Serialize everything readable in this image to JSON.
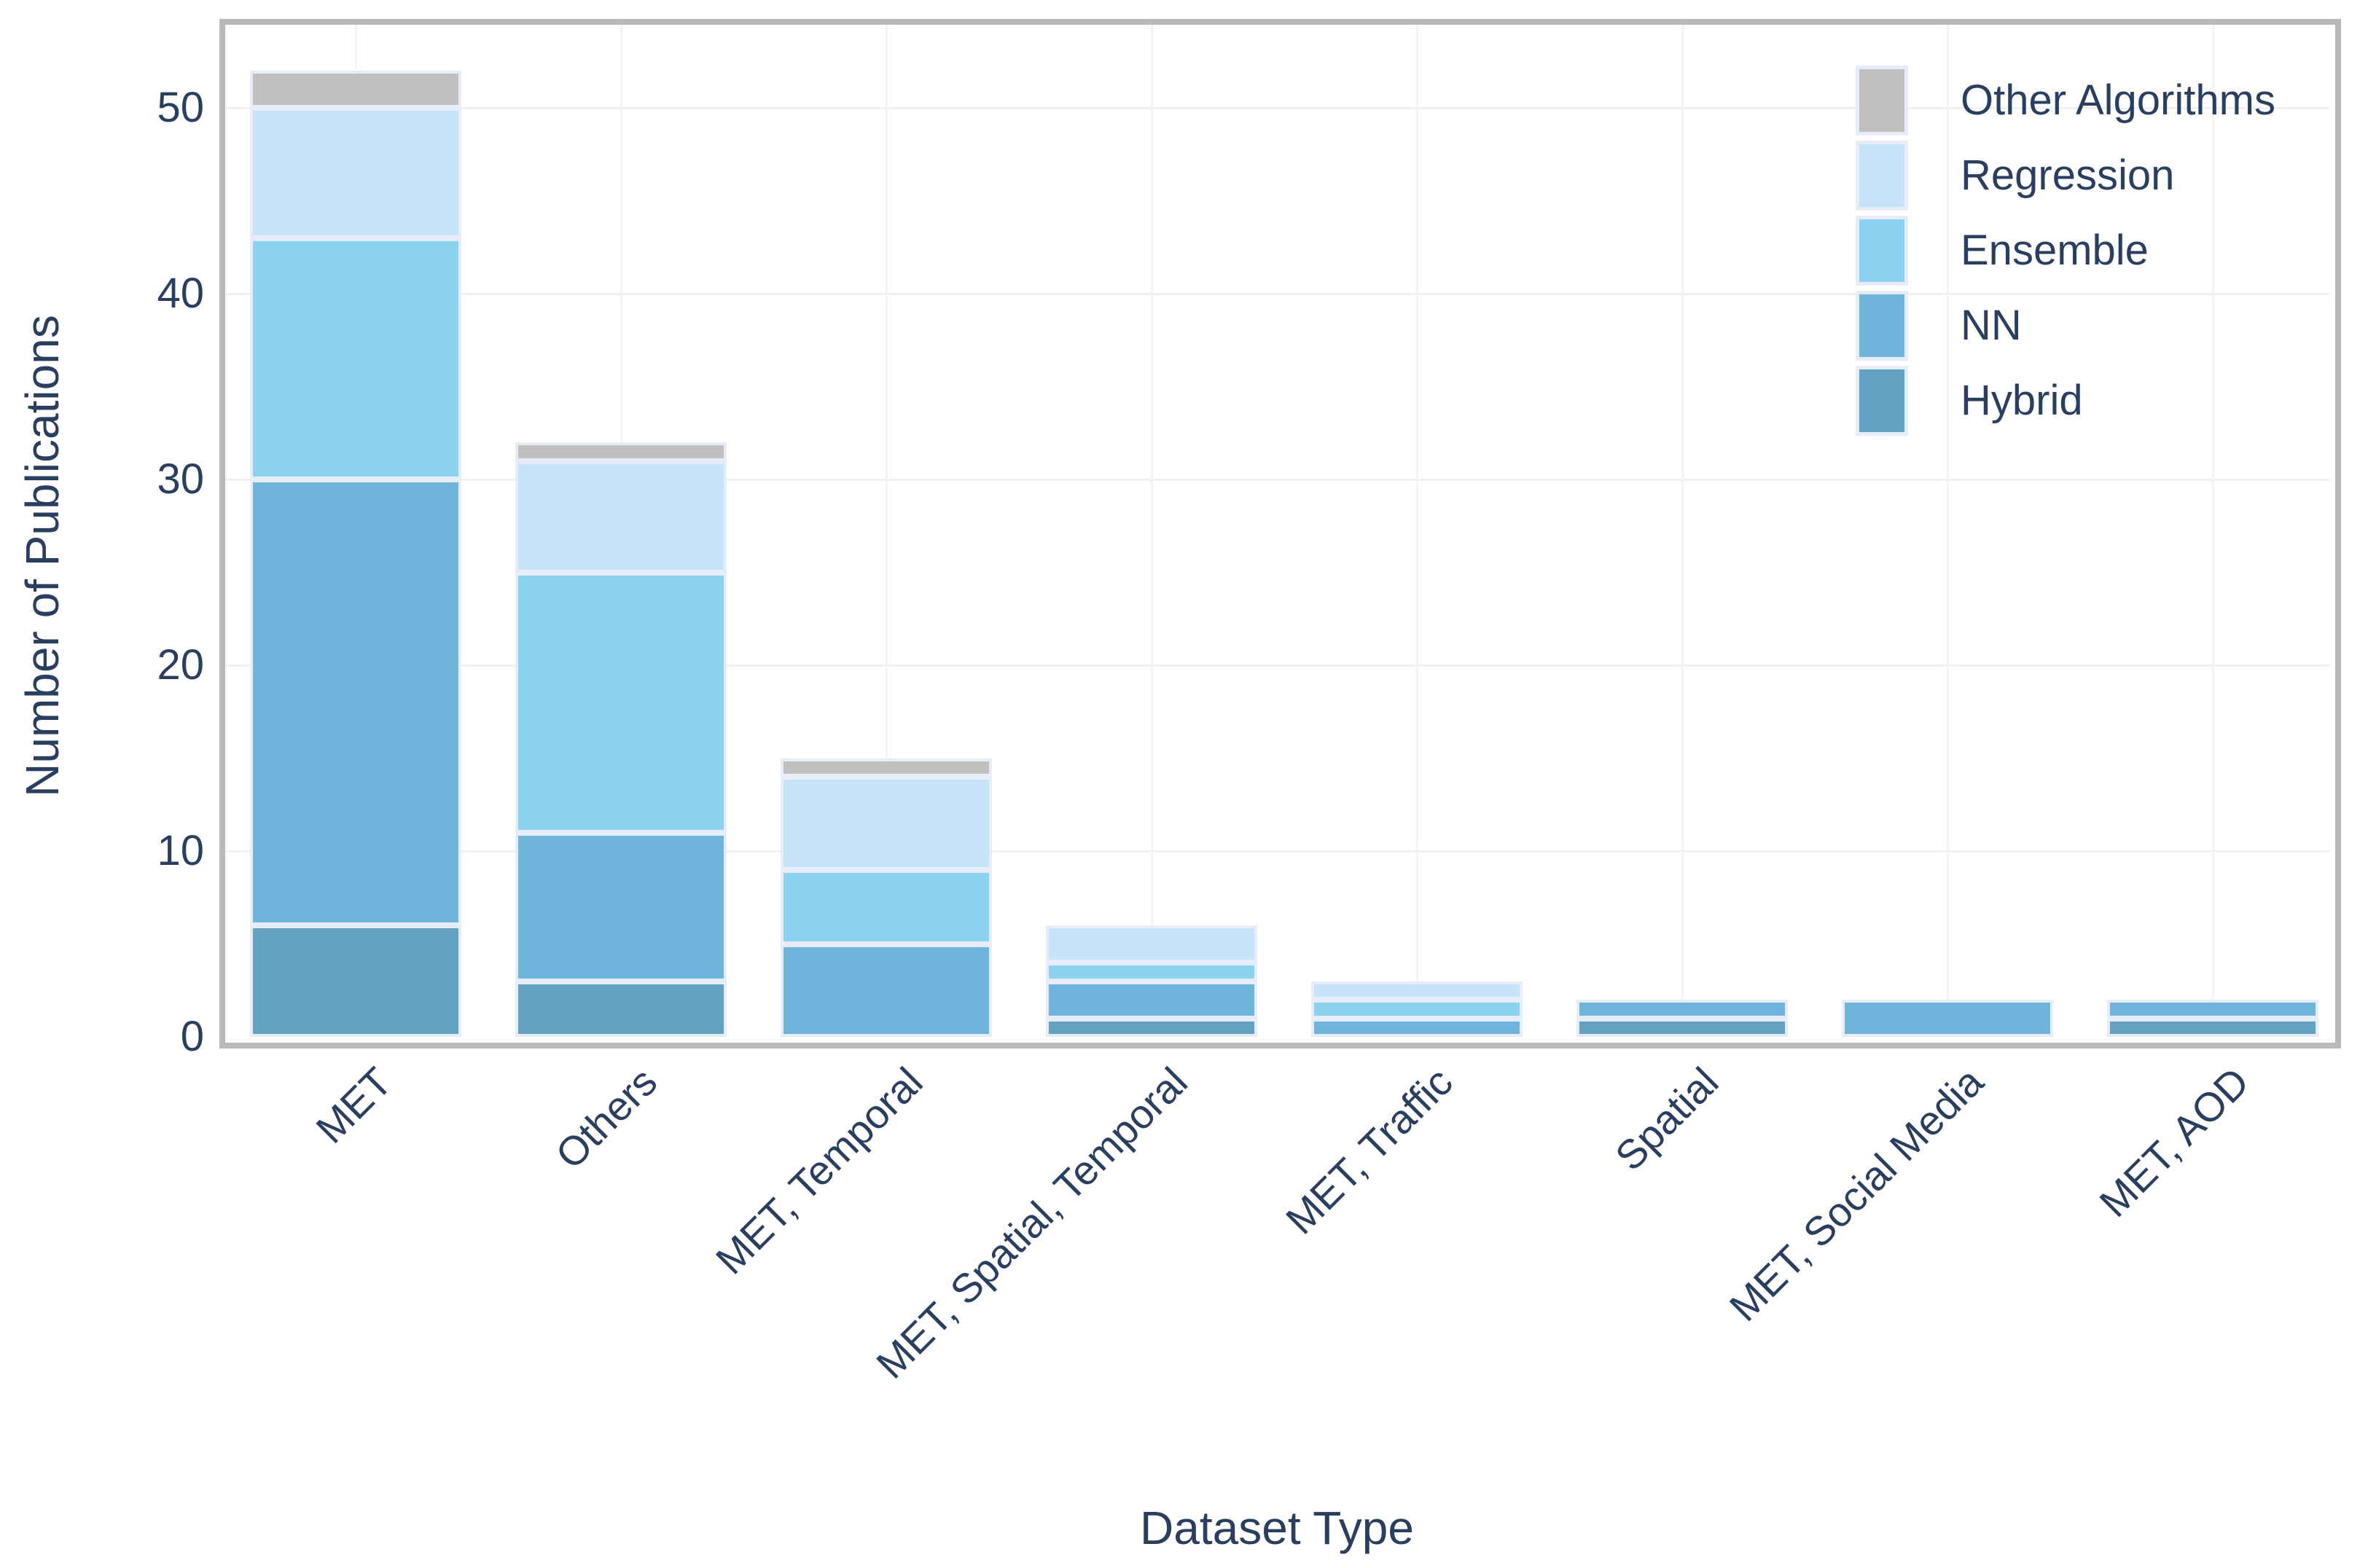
{
  "chart_data": {
    "type": "bar",
    "stacked": true,
    "title": "",
    "xlabel": "Dataset Type",
    "ylabel": "Number of Publications",
    "categories": [
      "MET",
      "Others",
      "MET, Temporal",
      "MET, Spatial, Temporal",
      "MET, Traffic",
      "Spatial",
      "MET, Social Media",
      "MET, AOD"
    ],
    "series": [
      {
        "name": "Hybrid",
        "color": "#62a1c2",
        "values": [
          6,
          3,
          0,
          1,
          0,
          1,
          0,
          1
        ]
      },
      {
        "name": "NN",
        "color": "#6fb5db",
        "values": [
          24,
          8,
          5,
          2,
          1,
          1,
          2,
          1
        ]
      },
      {
        "name": "Ensemble",
        "color": "#8bd1f0",
        "values": [
          13,
          14,
          4,
          1,
          1,
          0,
          0,
          0
        ]
      },
      {
        "name": "Regression",
        "color": "#c6e3f7",
        "values": [
          7,
          6,
          5,
          2,
          1,
          0,
          0,
          0
        ]
      },
      {
        "name": "Other Algorithms",
        "color": "#c2bfbf",
        "values": [
          2,
          1,
          1,
          0,
          0,
          0,
          0,
          0
        ]
      }
    ],
    "totals": [
      52,
      32,
      15,
      6,
      3,
      2,
      2,
      2
    ],
    "yticks": [
      0,
      10,
      20,
      30,
      40,
      50
    ],
    "ylim": [
      0,
      54.5
    ],
    "grid": "on",
    "legend": {
      "position": "top-right",
      "entries": [
        "Other Algorithms",
        "Regression",
        "Ensemble",
        "NN",
        "Hybrid"
      ]
    },
    "colors": {
      "frame": "#b9b9b9",
      "grid_h": "#f1f1f5",
      "grid_v": "#f4f4f7",
      "text": "#2a3f5f",
      "segment_border": "#e7edf8",
      "background": "#ffffff"
    }
  }
}
